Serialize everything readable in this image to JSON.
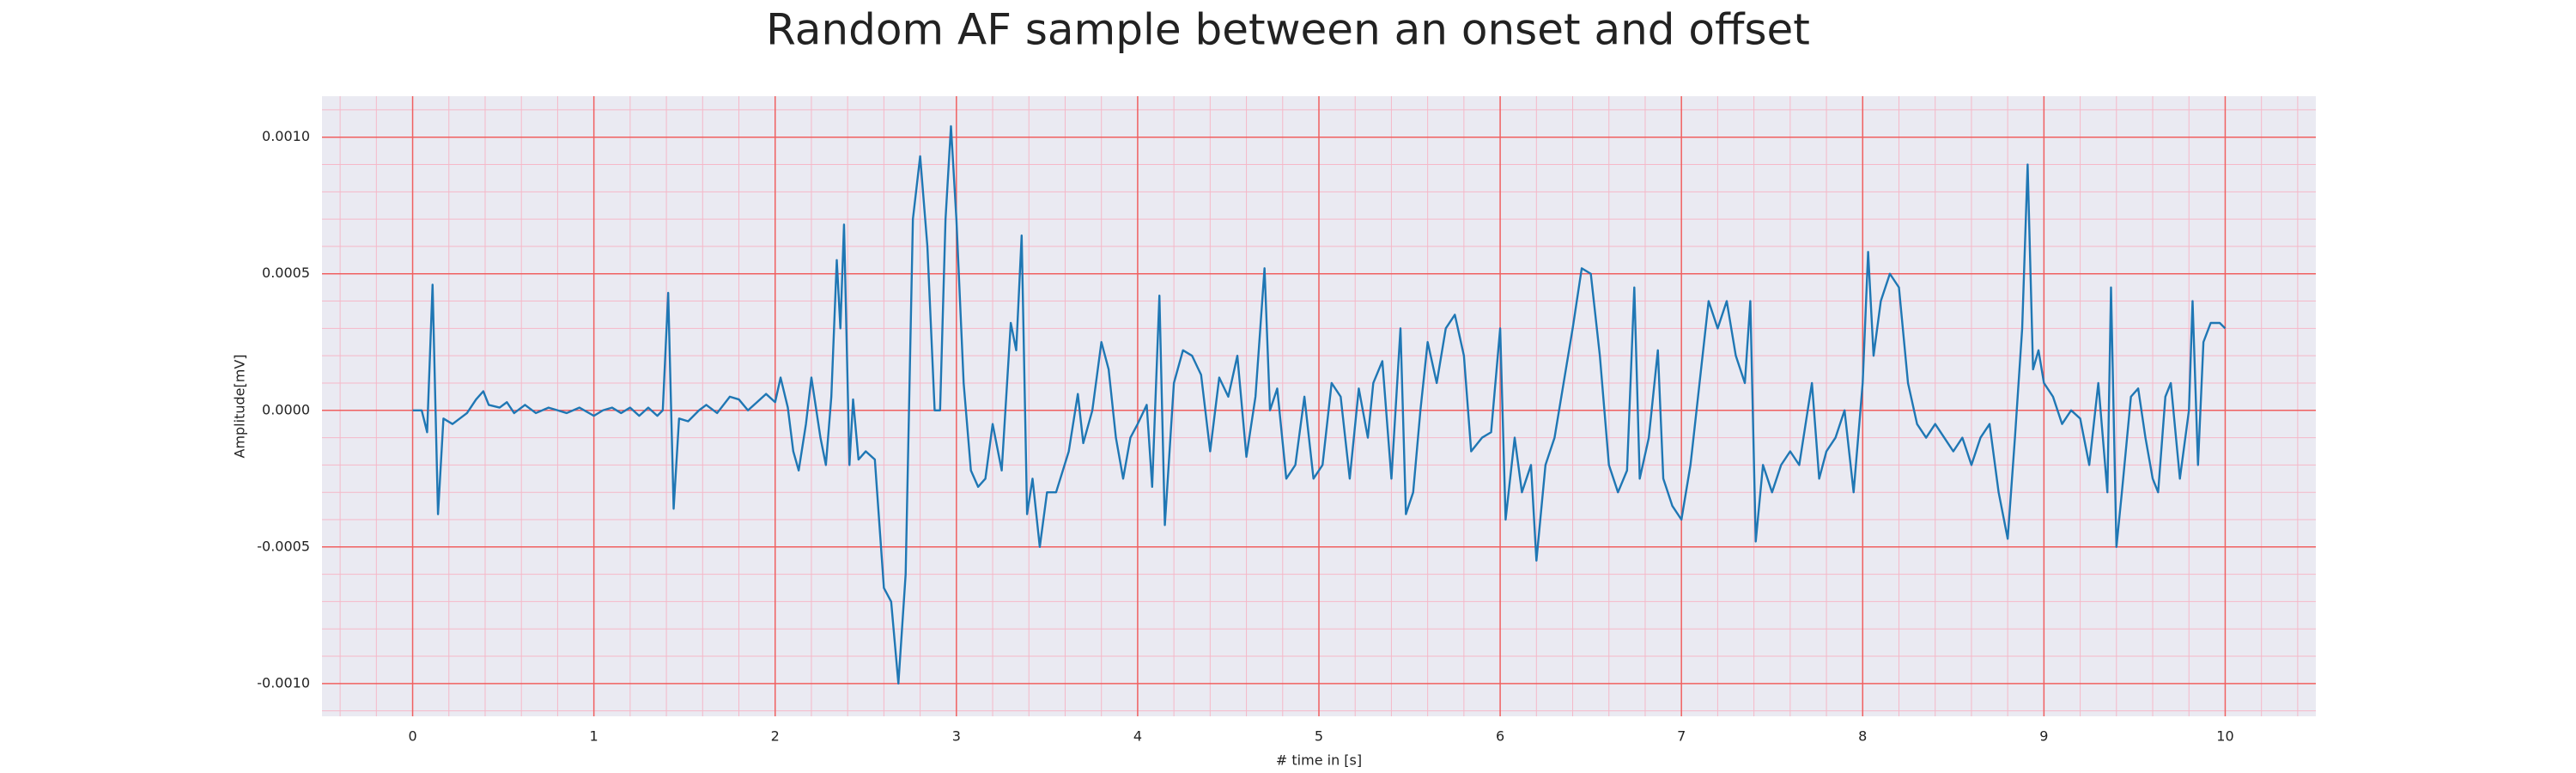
{
  "chart_data": {
    "type": "line",
    "title": "Random AF sample between an onset and offset",
    "xlabel": "# time in [s]",
    "ylabel": "Amplitude[mV]",
    "color": "#1f77b4",
    "grid": true,
    "minor_grid": true,
    "xlim": [
      -0.5,
      10.5
    ],
    "ylim": [
      -0.00112,
      0.00115
    ],
    "xticks": [
      0,
      1,
      2,
      3,
      4,
      5,
      6,
      7,
      8,
      9,
      10
    ],
    "yticks": [
      {
        "value": -0.001,
        "label": "-0.0010"
      },
      {
        "value": -0.0005,
        "label": "-0.0005"
      },
      {
        "value": 0,
        "label": "0.0000"
      },
      {
        "value": 0.0005,
        "label": "0.0005"
      },
      {
        "value": 0.001,
        "label": "0.0010"
      }
    ],
    "x": [
      0,
      0.05,
      0.08,
      0.11,
      0.14,
      0.17,
      0.22,
      0.3,
      0.35,
      0.39,
      0.42,
      0.48,
      0.52,
      0.56,
      0.62,
      0.68,
      0.75,
      0.8,
      0.85,
      0.92,
      1.0,
      1.05,
      1.1,
      1.15,
      1.2,
      1.25,
      1.3,
      1.35,
      1.38,
      1.41,
      1.44,
      1.47,
      1.52,
      1.58,
      1.62,
      1.68,
      1.75,
      1.8,
      1.85,
      1.9,
      1.95,
      2.0,
      2.03,
      2.07,
      2.1,
      2.13,
      2.17,
      2.2,
      2.25,
      2.28,
      2.31,
      2.34,
      2.36,
      2.38,
      2.41,
      2.43,
      2.46,
      2.5,
      2.55,
      2.6,
      2.64,
      2.68,
      2.72,
      2.76,
      2.8,
      2.84,
      2.88,
      2.91,
      2.94,
      2.97,
      3.0,
      3.04,
      3.08,
      3.12,
      3.16,
      3.2,
      3.25,
      3.3,
      3.33,
      3.36,
      3.39,
      3.42,
      3.46,
      3.5,
      3.55,
      3.62,
      3.67,
      3.7,
      3.75,
      3.8,
      3.84,
      3.88,
      3.92,
      3.96,
      4.0,
      4.05,
      4.08,
      4.12,
      4.15,
      4.2,
      4.25,
      4.3,
      4.35,
      4.4,
      4.45,
      4.5,
      4.55,
      4.6,
      4.65,
      4.7,
      4.73,
      4.77,
      4.82,
      4.87,
      4.92,
      4.97,
      5.02,
      5.07,
      5.12,
      5.17,
      5.22,
      5.27,
      5.3,
      5.35,
      5.4,
      5.45,
      5.48,
      5.52,
      5.56,
      5.6,
      5.65,
      5.7,
      5.75,
      5.8,
      5.84,
      5.9,
      5.95,
      6.0,
      6.03,
      6.08,
      6.12,
      6.17,
      6.2,
      6.25,
      6.3,
      6.35,
      6.4,
      6.45,
      6.5,
      6.55,
      6.6,
      6.65,
      6.7,
      6.74,
      6.77,
      6.82,
      6.87,
      6.9,
      6.95,
      7.0,
      7.05,
      7.1,
      7.15,
      7.2,
      7.25,
      7.3,
      7.35,
      7.38,
      7.41,
      7.45,
      7.5,
      7.55,
      7.6,
      7.65,
      7.72,
      7.76,
      7.8,
      7.85,
      7.9,
      7.95,
      8.0,
      8.03,
      8.06,
      8.1,
      8.15,
      8.2,
      8.25,
      8.3,
      8.35,
      8.4,
      8.45,
      8.5,
      8.55,
      8.6,
      8.65,
      8.7,
      8.75,
      8.8,
      8.84,
      8.88,
      8.91,
      8.94,
      8.97,
      9.0,
      9.05,
      9.1,
      9.15,
      9.2,
      9.25,
      9.3,
      9.35,
      9.37,
      9.4,
      9.43,
      9.48,
      9.52,
      9.56,
      9.6,
      9.63,
      9.67,
      9.7,
      9.75,
      9.8,
      9.82,
      9.85,
      9.88,
      9.92,
      9.97,
      10.0
    ],
    "values": [
      0,
      0,
      -8e-05,
      0.00046,
      -0.00038,
      -3e-05,
      -5e-05,
      -1e-05,
      4e-05,
      7e-05,
      2e-05,
      1e-05,
      3e-05,
      -1e-05,
      2e-05,
      -1e-05,
      1e-05,
      0,
      -1e-05,
      1e-05,
      -2e-05,
      0,
      1e-05,
      -1e-05,
      1e-05,
      -2e-05,
      1e-05,
      -2e-05,
      0,
      0.00043,
      -0.00036,
      -3e-05,
      -4e-05,
      0,
      2e-05,
      -1e-05,
      5e-05,
      4e-05,
      0,
      3e-05,
      6e-05,
      3e-05,
      0.00012,
      1e-05,
      -0.00015,
      -0.00022,
      -5e-05,
      0.00012,
      -0.0001,
      -0.0002,
      5e-05,
      0.00055,
      0.0003,
      0.00068,
      -0.0002,
      4e-05,
      -0.00018,
      -0.00015,
      -0.00018,
      -0.00065,
      -0.0007,
      -0.001,
      -0.0006,
      0.0007,
      0.00093,
      0.0006,
      0,
      0,
      0.0007,
      0.00104,
      0.0007,
      0.0001,
      -0.00022,
      -0.00028,
      -0.00025,
      -5e-05,
      -0.00022,
      0.00032,
      0.00022,
      0.00064,
      -0.00038,
      -0.00025,
      -0.0005,
      -0.0003,
      -0.0003,
      -0.00015,
      6e-05,
      -0.00012,
      0,
      0.00025,
      0.00015,
      -0.0001,
      -0.00025,
      -0.0001,
      -5e-05,
      2e-05,
      -0.00028,
      0.00042,
      -0.00042,
      0.0001,
      0.00022,
      0.0002,
      0.00013,
      -0.00015,
      0.00012,
      5e-05,
      0.0002,
      -0.00017,
      5e-05,
      0.00052,
      0,
      8e-05,
      -0.00025,
      -0.0002,
      5e-05,
      -0.00025,
      -0.0002,
      0.0001,
      5e-05,
      -0.00025,
      8e-05,
      -0.0001,
      0.0001,
      0.00018,
      -0.00025,
      0.0003,
      -0.00038,
      -0.0003,
      0,
      0.00025,
      0.0001,
      0.0003,
      0.00035,
      0.0002,
      -0.00015,
      -0.0001,
      -8e-05,
      0.0003,
      -0.0004,
      -0.0001,
      -0.0003,
      -0.0002,
      -0.00055,
      -0.0002,
      -0.0001,
      0.0001,
      0.0003,
      0.00052,
      0.0005,
      0.0002,
      -0.0002,
      -0.0003,
      -0.00022,
      0.00045,
      -0.00025,
      -0.0001,
      0.00022,
      -0.00025,
      -0.00035,
      -0.0004,
      -0.0002,
      0.0001,
      0.0004,
      0.0003,
      0.0004,
      0.0002,
      0.0001,
      0.0004,
      -0.00048,
      -0.0002,
      -0.0003,
      -0.0002,
      -0.00015,
      -0.0002,
      0.0001,
      -0.00025,
      -0.00015,
      -0.0001,
      0,
      -0.0003,
      0.0001,
      0.00058,
      0.0002,
      0.0004,
      0.0005,
      0.00045,
      0.0001,
      -5e-05,
      -0.0001,
      -5e-05,
      -0.0001,
      -0.00015,
      -0.0001,
      -0.0002,
      -0.0001,
      -5e-05,
      -0.0003,
      -0.00047,
      -0.0001,
      0.0003,
      0.0009,
      0.00015,
      0.00022,
      0.0001,
      5e-05,
      -5e-05,
      0,
      -3e-05,
      -0.0002,
      0.0001,
      -0.0003,
      0.00045,
      -0.0005,
      -0.0003,
      5e-05,
      8e-05,
      -0.0001,
      -0.00025,
      -0.0003,
      5e-05,
      0.0001,
      -0.00025,
      0,
      0.0004,
      -0.0002,
      0.00025,
      0.00032,
      0.00032,
      0.0003
    ]
  }
}
